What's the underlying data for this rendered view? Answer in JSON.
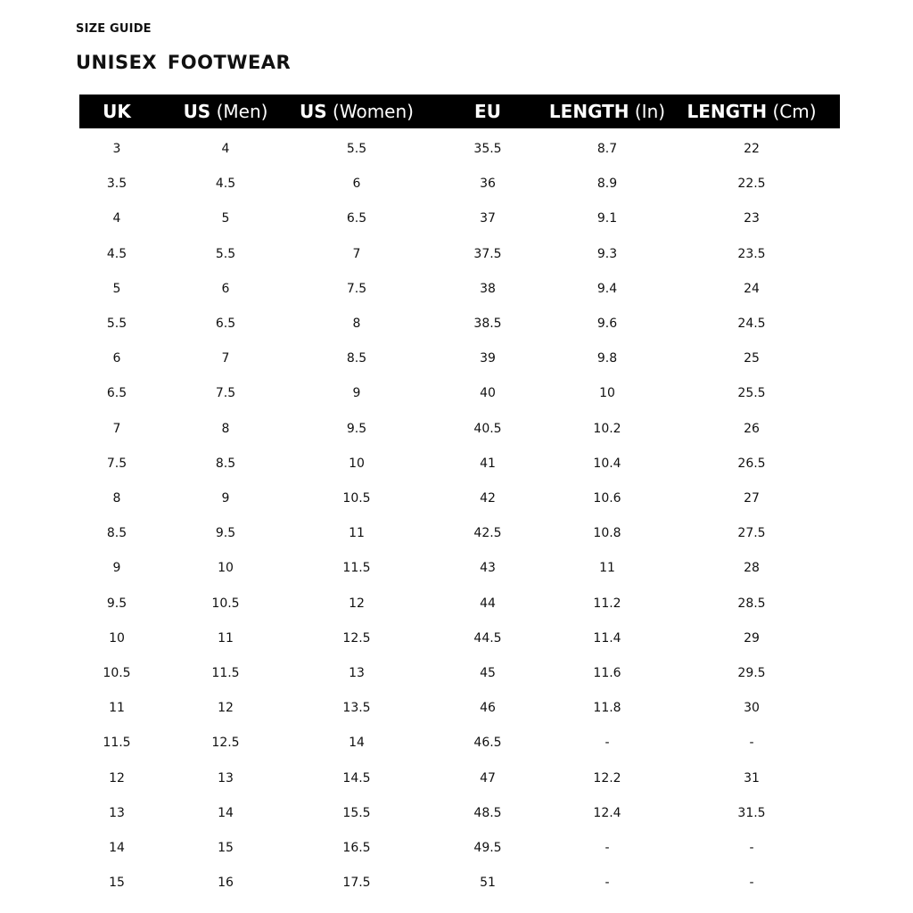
{
  "kicker": "SIZE GUIDE",
  "title": "UNISEX  FOOTWEAR",
  "columns": [
    {
      "bold": "UK",
      "light": ""
    },
    {
      "bold": "US",
      "light": " (Men)"
    },
    {
      "bold": "US",
      "light": " (Women)"
    },
    {
      "bold": "EU",
      "light": ""
    },
    {
      "bold": "LENGTH",
      "light": " (In)"
    },
    {
      "bold": "LENGTH",
      "light": " (Cm)"
    }
  ],
  "rows": [
    [
      "3",
      "4",
      "5.5",
      "35.5",
      "8.7",
      "22"
    ],
    [
      "3.5",
      "4.5",
      "6",
      "36",
      "8.9",
      "22.5"
    ],
    [
      "4",
      "5",
      "6.5",
      "37",
      "9.1",
      "23"
    ],
    [
      "4.5",
      "5.5",
      "7",
      "37.5",
      "9.3",
      "23.5"
    ],
    [
      "5",
      "6",
      "7.5",
      "38",
      "9.4",
      "24"
    ],
    [
      "5.5",
      "6.5",
      "8",
      "38.5",
      "9.6",
      "24.5"
    ],
    [
      "6",
      "7",
      "8.5",
      "39",
      "9.8",
      "25"
    ],
    [
      "6.5",
      "7.5",
      "9",
      "40",
      "10",
      "25.5"
    ],
    [
      "7",
      "8",
      "9.5",
      "40.5",
      "10.2",
      "26"
    ],
    [
      "7.5",
      "8.5",
      "10",
      "41",
      "10.4",
      "26.5"
    ],
    [
      "8",
      "9",
      "10.5",
      "42",
      "10.6",
      "27"
    ],
    [
      "8.5",
      "9.5",
      "11",
      "42.5",
      "10.8",
      "27.5"
    ],
    [
      "9",
      "10",
      "11.5",
      "43",
      "11",
      "28"
    ],
    [
      "9.5",
      "10.5",
      "12",
      "44",
      "11.2",
      "28.5"
    ],
    [
      "10",
      "11",
      "12.5",
      "44.5",
      "11.4",
      "29"
    ],
    [
      "10.5",
      "11.5",
      "13",
      "45",
      "11.6",
      "29.5"
    ],
    [
      "11",
      "12",
      "13.5",
      "46",
      "11.8",
      "30"
    ],
    [
      "11.5",
      "12.5",
      "14",
      "46.5",
      "-",
      "-"
    ],
    [
      "12",
      "13",
      "14.5",
      "47",
      "12.2",
      "31"
    ],
    [
      "13",
      "14",
      "15.5",
      "48.5",
      "12.4",
      "31.5"
    ],
    [
      "14",
      "15",
      "16.5",
      "49.5",
      "-",
      "-"
    ],
    [
      "15",
      "16",
      "17.5",
      "51",
      "-",
      "-"
    ]
  ]
}
